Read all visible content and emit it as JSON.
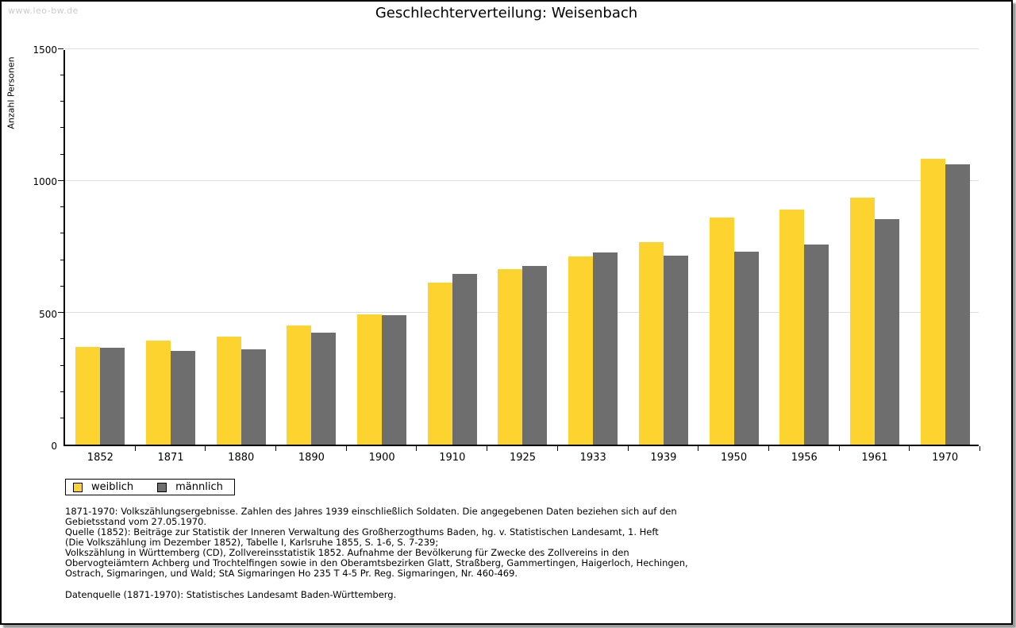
{
  "watermark": "www.leo-bw.de",
  "title": "Geschlechterverteilung: Weisenbach",
  "legend": {
    "female": "weiblich",
    "male": "männlich"
  },
  "colors": {
    "female": "#FCD32F",
    "male": "#6E6E6E",
    "gridline": "#DEDEDE",
    "axis": "#000000",
    "watermark": "#CCCCCC"
  },
  "chart_data": {
    "type": "bar",
    "title": "Geschlechterverteilung: Weisenbach",
    "xlabel": "",
    "ylabel": "Anzahl Personen",
    "categories": [
      "1852",
      "1871",
      "1880",
      "1890",
      "1900",
      "1910",
      "1925",
      "1933",
      "1939",
      "1950",
      "1956",
      "1961",
      "1970"
    ],
    "series": [
      {
        "name": "weiblich",
        "color": "#FCD32F",
        "values": [
          371,
          394,
          409,
          450,
          494,
          614,
          665,
          713,
          768,
          860,
          890,
          935,
          1083
        ]
      },
      {
        "name": "männlich",
        "color": "#6E6E6E",
        "values": [
          367,
          355,
          361,
          423,
          489,
          645,
          677,
          727,
          715,
          732,
          757,
          855,
          1062
        ]
      }
    ],
    "ylim": [
      0,
      1500
    ],
    "ytick_major": 500,
    "ytick_minor": 100,
    "ytick_labels": [
      "0",
      "500",
      "1000",
      "1500"
    ],
    "grid": true,
    "legend_position": "bottom-left"
  },
  "notes": {
    "lines": [
      "1871-1970: Volkszählungsergebnisse. Zahlen des Jahres 1939 einschließlich Soldaten. Die angegebenen Daten beziehen sich auf den",
      "Gebietsstand vom 27.05.1970.",
      "Quelle (1852): Beiträge zur Statistik der Inneren Verwaltung des Großherzogthums Baden, hg. v. Statistischen Landesamt, 1. Heft",
      "(Die Volkszählung im Dezember 1852), Tabelle I, Karlsruhe 1855, S. 1-6, S. 7-239;",
      "Volkszählung in Württemberg (CD), Zollvereinsstatistik 1852. Aufnahme der Bevölkerung für Zwecke des Zollvereins in den",
      "Obervogteiämtern Achberg und Trochtelfingen sowie in den Oberamtsbezirken Glatt, Straßberg, Gammertingen, Haigerloch, Hechingen,",
      "Ostrach, Sigmaringen, und Wald; StA Sigmaringen Ho 235 T 4-5 Pr. Reg. Sigmaringen, Nr. 460-469."
    ],
    "data_source": "Datenquelle (1871-1970): Statistisches Landesamt Baden-Württemberg."
  }
}
